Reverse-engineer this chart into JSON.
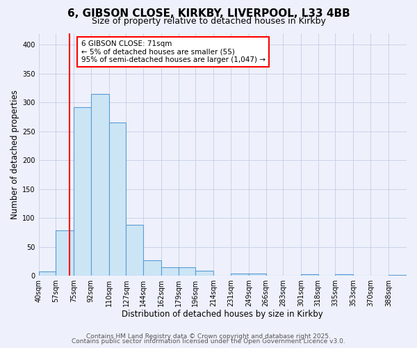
{
  "title": "6, GIBSON CLOSE, KIRKBY, LIVERPOOL, L33 4BB",
  "subtitle": "Size of property relative to detached houses in Kirkby",
  "xlabel": "Distribution of detached houses by size in Kirkby",
  "ylabel": "Number of detached properties",
  "bin_labels": [
    "40sqm",
    "57sqm",
    "75sqm",
    "92sqm",
    "110sqm",
    "127sqm",
    "144sqm",
    "162sqm",
    "179sqm",
    "196sqm",
    "214sqm",
    "231sqm",
    "249sqm",
    "266sqm",
    "283sqm",
    "301sqm",
    "318sqm",
    "335sqm",
    "353sqm",
    "370sqm",
    "388sqm"
  ],
  "bin_edges": [
    40,
    57,
    75,
    92,
    110,
    127,
    144,
    162,
    179,
    196,
    214,
    231,
    249,
    266,
    283,
    301,
    318,
    335,
    353,
    370,
    388
  ],
  "bar_heights": [
    7,
    79,
    292,
    315,
    265,
    88,
    27,
    15,
    15,
    8,
    0,
    4,
    4,
    0,
    0,
    2,
    0,
    2,
    0,
    0,
    1
  ],
  "bar_color": "#cce5f5",
  "bar_edge_color": "#5b9bd5",
  "ylim": [
    0,
    420
  ],
  "yticks": [
    0,
    50,
    100,
    150,
    200,
    250,
    300,
    350,
    400
  ],
  "vline_x": 71,
  "vline_color": "red",
  "annotation_title": "6 GIBSON CLOSE: 71sqm",
  "annotation_line1": "← 5% of detached houses are smaller (55)",
  "annotation_line2": "95% of semi-detached houses are larger (1,047) →",
  "footer1": "Contains HM Land Registry data © Crown copyright and database right 2025.",
  "footer2": "Contains public sector information licensed under the Open Government Licence v3.0.",
  "background_color": "#eef1fb",
  "grid_color": "#c5cce8",
  "title_fontsize": 11,
  "subtitle_fontsize": 9,
  "axis_label_fontsize": 8.5,
  "tick_fontsize": 7,
  "footer_fontsize": 6.5,
  "annotation_fontsize": 7.5
}
